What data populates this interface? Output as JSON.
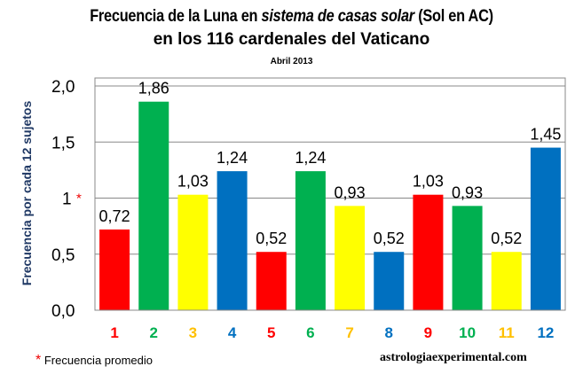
{
  "chart_data": {
    "type": "bar",
    "title_part1": "Frecuencia de la Luna en ",
    "title_italic": "sistema de casas solar",
    "title_part2": " (Sol en AC)",
    "title_line2": "en los 116 cardenales del Vaticano",
    "subtitle": "Abril 2013",
    "ylabel": "Frecuencia por cada 12 sujetos",
    "ylim": [
      0,
      2.0
    ],
    "yticks": [
      "0,0",
      "0,5",
      "1",
      "1,5",
      "2,0"
    ],
    "ytick_values": [
      0,
      0.5,
      1,
      1.5,
      2.0
    ],
    "ytick_marker": "*",
    "grid": true,
    "categories": [
      "1",
      "2",
      "3",
      "4",
      "5",
      "6",
      "7",
      "8",
      "9",
      "10",
      "11",
      "12"
    ],
    "values": [
      0.72,
      1.86,
      1.03,
      1.24,
      0.52,
      1.24,
      0.93,
      0.52,
      1.03,
      0.93,
      0.52,
      1.45
    ],
    "data_labels": [
      "0,72",
      "1,86",
      "1,03",
      "1,24",
      "0,52",
      "1,24",
      "0,93",
      "0,52",
      "1,03",
      "0,93",
      "0,52",
      "1,45"
    ],
    "colors": [
      "#ff0000",
      "#00b050",
      "#ffff00",
      "#0070c0",
      "#ff0000",
      "#00b050",
      "#ffff00",
      "#0070c0",
      "#ff0000",
      "#00b050",
      "#ffff00",
      "#0070c0"
    ],
    "label_colors": [
      "#ff0000",
      "#00b050",
      "#ffc000",
      "#0070c0",
      "#ff0000",
      "#00b050",
      "#ffc000",
      "#0070c0",
      "#ff0000",
      "#00b050",
      "#ffc000",
      "#0070c0"
    ]
  },
  "footnote": {
    "marker": "*",
    "text": "Frecuencia promedio"
  },
  "credit": "astrologiaexperimental.com"
}
